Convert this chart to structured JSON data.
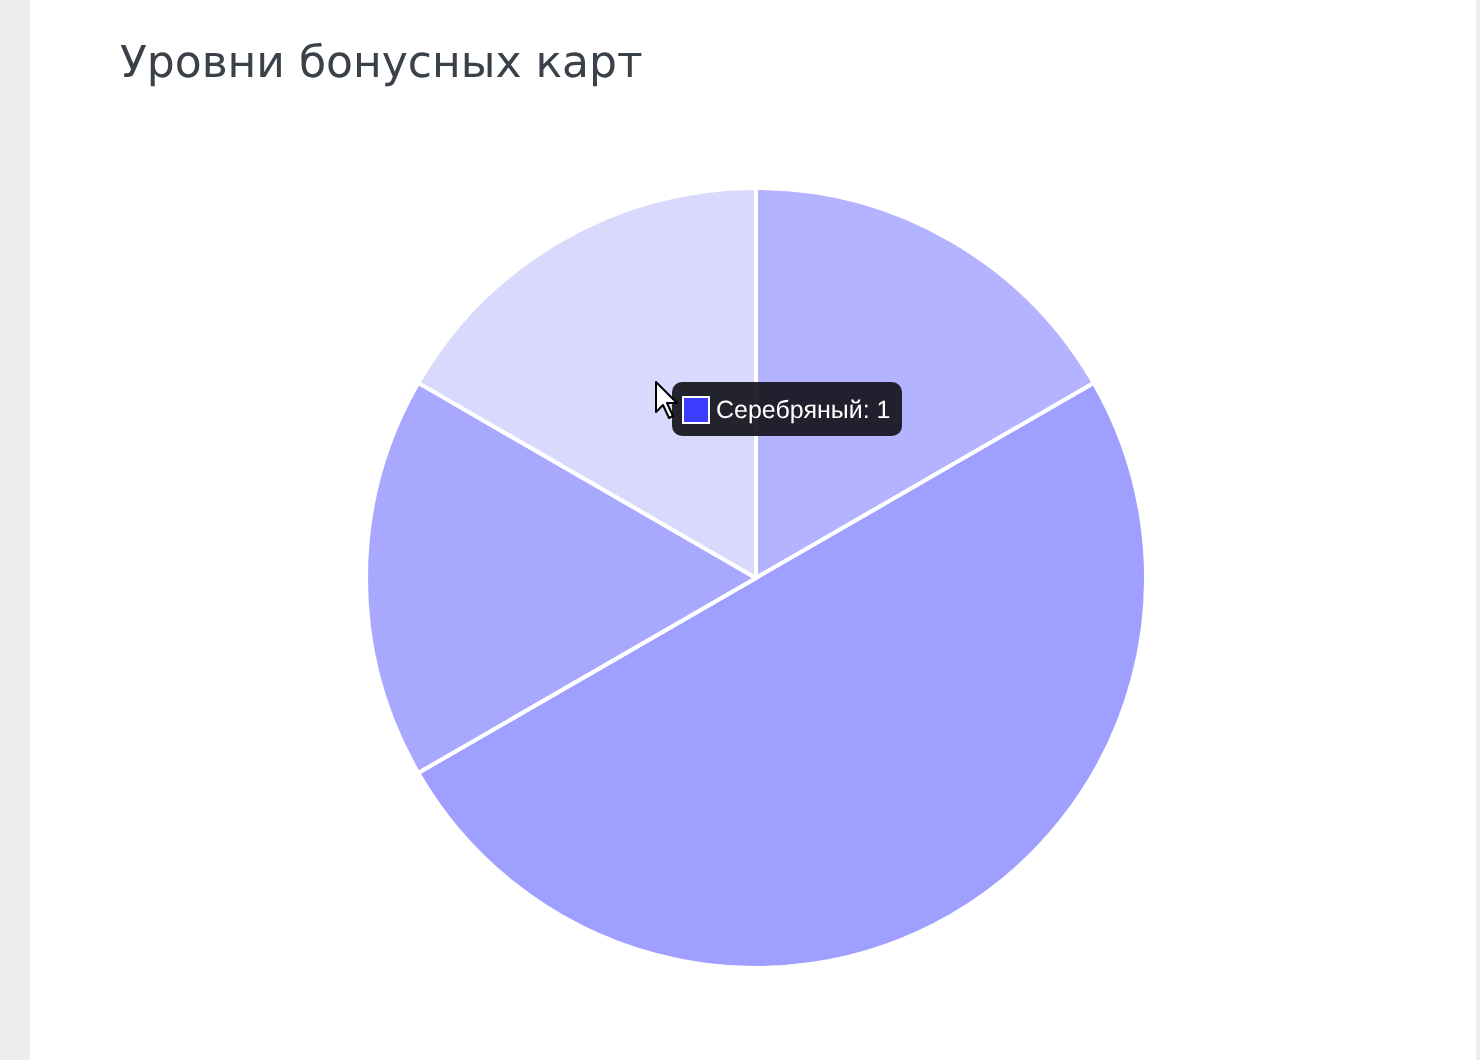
{
  "chart_data": {
    "type": "pie",
    "title": "Уровни бонусных карт",
    "categories": [
      null,
      null,
      null,
      null
    ],
    "values": [
      16.67,
      50,
      16.67,
      16.66
    ],
    "colors": [
      "#b3b3ff",
      "#9f9fff",
      "#a8a8ff",
      "#d9d9fd"
    ],
    "annotations": [
      "Серебряный: 1"
    ]
  }
}
